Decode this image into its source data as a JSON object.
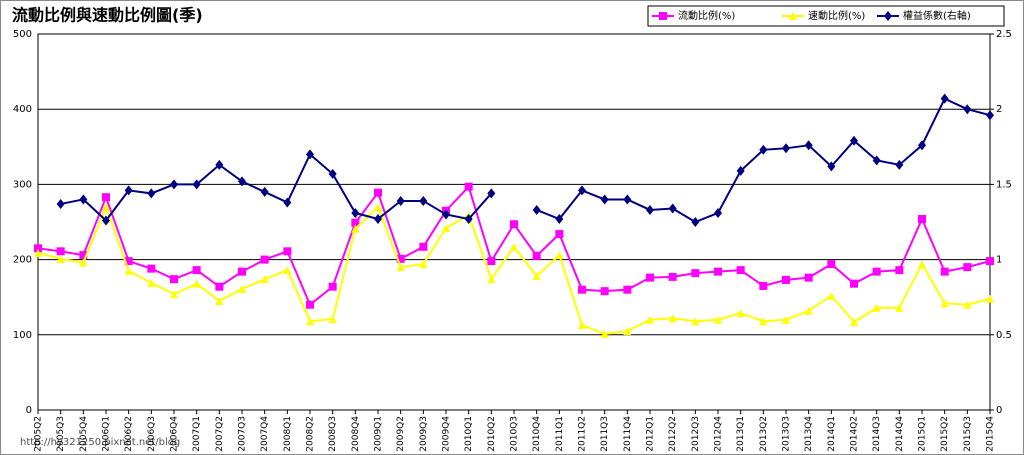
{
  "chart_data": {
    "type": "line",
    "title": "流動比例與速動比例圖(季)",
    "watermark": "http://hy321250.pixnet.net/blog",
    "categories": [
      "2005Q2",
      "2005Q3",
      "2005Q4",
      "2006Q1",
      "2006Q2",
      "2006Q3",
      "2006Q4",
      "2007Q1",
      "2007Q2",
      "2007Q3",
      "2007Q4",
      "2008Q1",
      "2008Q2",
      "2008Q3",
      "2008Q4",
      "2009Q1",
      "2009Q2",
      "2009Q3",
      "2009Q4",
      "2010Q1",
      "2010Q2",
      "2010Q3",
      "2010Q4",
      "2011Q1",
      "2011Q2",
      "2011Q3",
      "2011Q4",
      "2012Q1",
      "2012Q2",
      "2012Q3",
      "2012Q4",
      "2013Q1",
      "2013Q2",
      "2013Q3",
      "2013Q4",
      "2014Q1",
      "2014Q2",
      "2014Q3",
      "2014Q4",
      "2015Q1",
      "2015Q2",
      "2015Q3",
      "2015Q4"
    ],
    "series": [
      {
        "name": "流動比例(%)",
        "color": "#ff00ff",
        "marker": "square",
        "values": [
          215,
          211,
          206,
          283,
          198,
          188,
          174,
          186,
          164,
          184,
          200,
          211,
          140,
          164,
          249,
          289,
          201,
          217,
          265,
          297,
          198,
          247,
          205,
          234,
          160,
          158,
          160,
          176,
          177,
          182,
          184,
          186,
          165,
          173,
          176,
          194,
          168,
          184,
          186,
          254,
          184,
          190,
          198
        ]
      },
      {
        "name": "速動比例(%)",
        "color": "#ffff00",
        "marker": "triangle",
        "values": [
          209,
          201,
          196,
          270,
          185,
          169,
          154,
          168,
          145,
          161,
          174,
          186,
          118,
          121,
          241,
          270,
          190,
          194,
          242,
          259,
          174,
          217,
          178,
          206,
          113,
          101,
          105,
          120,
          122,
          118,
          120,
          129,
          118,
          120,
          132,
          152,
          117,
          136,
          136,
          194,
          142,
          140,
          148
        ]
      },
      {
        "name": "權益係數(右軸)",
        "color": "#000080",
        "marker": "diamond",
        "axis": "y2",
        "values": [
          null,
          1.37,
          1.4,
          1.26,
          1.46,
          1.44,
          1.5,
          1.5,
          1.63,
          1.52,
          1.45,
          1.38,
          1.7,
          1.57,
          1.31,
          1.27,
          1.39,
          1.39,
          1.3,
          1.27,
          1.44,
          null,
          1.33,
          1.27,
          1.46,
          1.4,
          1.4,
          1.33,
          1.34,
          1.25,
          1.31,
          1.59,
          1.73,
          1.74,
          1.76,
          1.62,
          1.79,
          1.66,
          1.63,
          1.76,
          2.07,
          2.0,
          1.96
        ]
      }
    ],
    "ylim": [
      0,
      500
    ],
    "yticks": [
      0,
      100,
      200,
      300,
      400,
      500
    ],
    "y2lim": [
      0,
      2.5
    ],
    "y2ticks": [
      0,
      0.5,
      1,
      1.5,
      2,
      2.5
    ],
    "grid": true,
    "legend": "top-right"
  }
}
